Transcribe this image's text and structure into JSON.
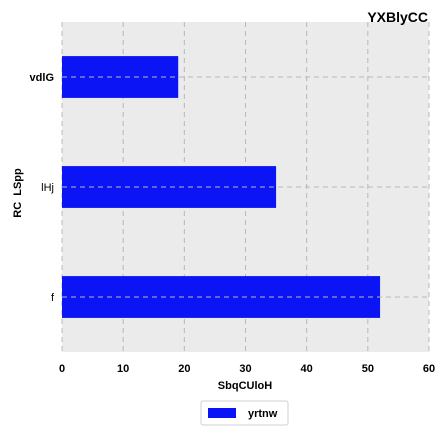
{
  "chart_data": {
    "type": "bar",
    "orientation": "horizontal",
    "title": "YXBlyCC",
    "xlabel": "SbqCUloH",
    "ylabel": "RC  LSpp",
    "categories": [
      "vdlG",
      "lHj",
      "f"
    ],
    "series": [
      {
        "name": "yrtnw",
        "values": [
          19,
          35,
          52
        ],
        "color": "#0a14f5"
      }
    ],
    "xlim": [
      0,
      60
    ],
    "xticks": [
      "0",
      "10",
      "20",
      "30",
      "40",
      "50",
      "60"
    ],
    "grid": true,
    "legend_position": "bottom-center",
    "colors": {
      "plot_background": "#ebebeb",
      "bar": "#0a14f5"
    }
  }
}
